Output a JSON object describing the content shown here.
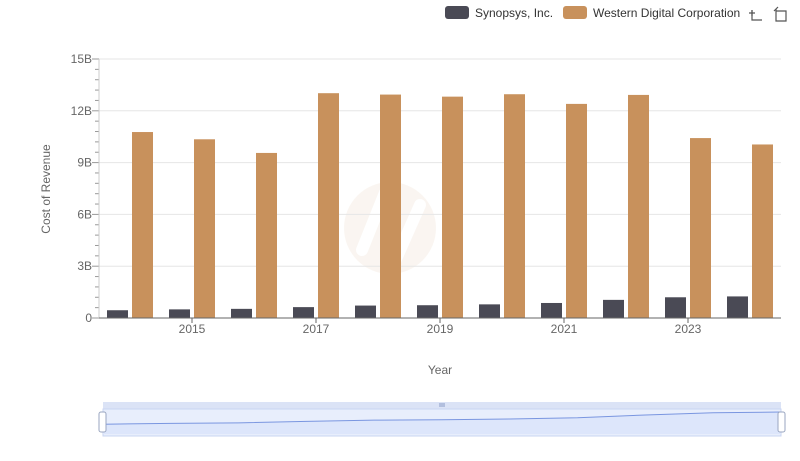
{
  "colors": {
    "series_0": "#4a4a55",
    "series_1": "#c8915c",
    "grid": "#e6e6e6",
    "axis": "#666666",
    "navigator_fill": "#dde6fb",
    "navigator_line": "#7a96e0"
  },
  "toolbar": {
    "zoom_icon": "zoom-in-icon",
    "reset_icon": "reset-zoom-icon"
  },
  "chart_data": {
    "type": "bar",
    "xlabel": "Year",
    "ylabel": "Cost of Revenue",
    "ylim": [
      0,
      15000000000
    ],
    "yticks": [
      {
        "value": 0,
        "label": "0"
      },
      {
        "value": 3000000000,
        "label": "3B"
      },
      {
        "value": 6000000000,
        "label": "6B"
      },
      {
        "value": 9000000000,
        "label": "9B"
      },
      {
        "value": 12000000000,
        "label": "12B"
      },
      {
        "value": 15000000000,
        "label": "15B"
      }
    ],
    "categories": [
      "2014",
      "2015",
      "2016",
      "2017",
      "2018",
      "2019",
      "2020",
      "2021",
      "2022",
      "2023",
      "2024"
    ],
    "xtick_labels": [
      "2015",
      "2017",
      "2019",
      "2021",
      "2023"
    ],
    "grid": true,
    "legend_position": "top-right",
    "series": [
      {
        "name": "Synopsys, Inc.",
        "values": [
          450000000,
          500000000,
          530000000,
          630000000,
          720000000,
          740000000,
          790000000,
          870000000,
          1050000000,
          1200000000,
          1250000000
        ]
      },
      {
        "name": "Western Digital Corporation",
        "values": [
          10770000000,
          10350000000,
          9560000000,
          13020000000,
          12940000000,
          12820000000,
          12960000000,
          12400000000,
          12920000000,
          10420000000,
          10050000000
        ]
      }
    ]
  }
}
